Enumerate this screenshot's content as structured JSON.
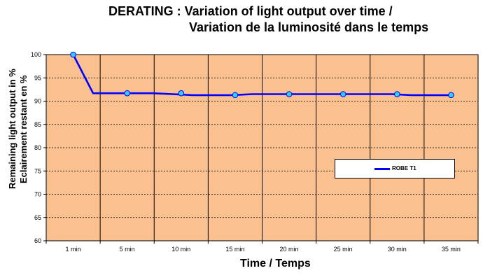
{
  "chart_data": {
    "type": "line",
    "title": "DERATING : Variation of light output over time /",
    "subtitle": "Variation de la luminosité dans le temps",
    "xlabel": "Time / Temps",
    "ylabel": [
      "Remaining light output in %",
      "Eclairement restant en %"
    ],
    "categories": [
      "1 min",
      "5 min",
      "10 min",
      "15 min",
      "20 min",
      "25 min",
      "30 min",
      "35 min"
    ],
    "ylim": [
      60,
      100
    ],
    "yticks": [
      "60",
      "65",
      "70",
      "75",
      "80",
      "85",
      "90",
      "95",
      "100"
    ],
    "grid": true,
    "legend_position": "right",
    "series": [
      {
        "name": "ROBE T1",
        "color": "#0000ff",
        "marker_color": "#33ccff",
        "values": [
          100,
          91.7,
          91.7,
          91.3,
          91.5,
          91.5,
          91.5,
          91.3
        ],
        "line_values": [
          100,
          91.7,
          91.7,
          91.7,
          91.7,
          91.5,
          91.3,
          91.3,
          91.3,
          91.5,
          91.5,
          91.5,
          91.5,
          91.5,
          91.5,
          91.5,
          91.5,
          91.3,
          91.3,
          91.3
        ]
      }
    ],
    "plot_background": "#fac090"
  }
}
